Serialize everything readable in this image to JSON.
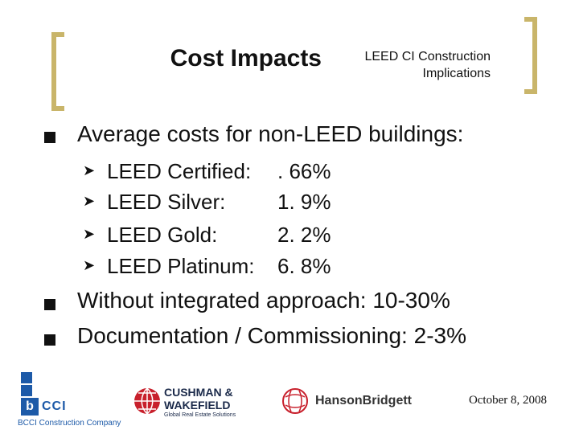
{
  "header": {
    "title": "Cost Impacts",
    "subtitle_line1": "LEED CI Construction",
    "subtitle_line2": "Implications"
  },
  "bullets": {
    "main1": "Average costs for non-LEED buildings:",
    "sub": [
      {
        "label": "LEED Certified:",
        "value": ". 66%"
      },
      {
        "label": "LEED Silver:",
        "value": "1. 9%"
      },
      {
        "label": "LEED Gold:",
        "value": "2. 2%"
      },
      {
        "label": "LEED Platinum:",
        "value": "6. 8%"
      }
    ],
    "main2": "Without integrated approach: 10-30%",
    "main3": "Documentation / Commissioning: 2-3%"
  },
  "footer": {
    "bcci_mark": "b",
    "bcci_letters": "CCI",
    "bcci_caption": "BCCI Construction Company",
    "cw_name1": "CUSHMAN &",
    "cw_name2": "WAKEFIELD",
    "cw_tagline": "Global Real Estate Solutions",
    "hb_name": "HansonBridgett",
    "date": "October 8, 2008"
  },
  "colors": {
    "accent": "#c9b56a",
    "bcci_blue": "#1d5aa8",
    "cw_red": "#c8202c"
  }
}
